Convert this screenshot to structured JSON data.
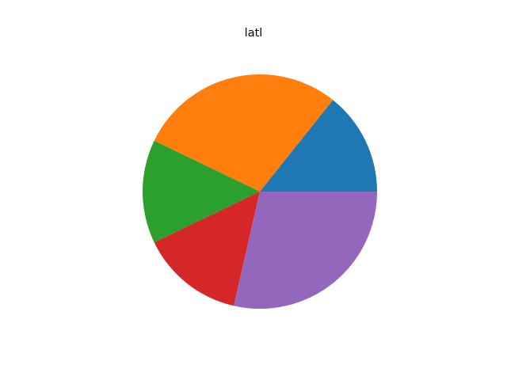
{
  "chart_data": {
    "type": "pie",
    "title": "latl",
    "values": [
      1,
      2,
      1,
      1,
      2
    ],
    "colors": [
      "#1f77b4",
      "#ff7f0e",
      "#2ca02c",
      "#d62728",
      "#9467bd"
    ],
    "start_angle_deg": 0,
    "direction": "counterclockwise",
    "legend": "none"
  }
}
